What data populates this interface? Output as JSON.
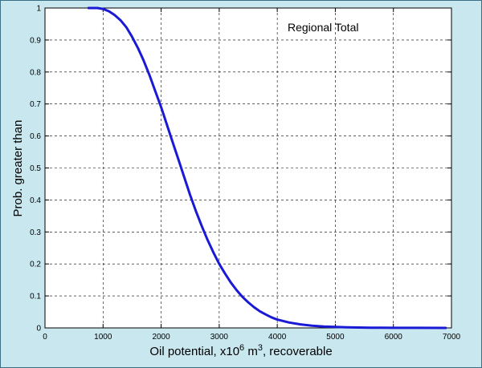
{
  "chart_data": {
    "type": "line",
    "title": "",
    "annotation": "Regional Total",
    "xlabel": "Oil potential, x10",
    "xlabel_sup1": "6",
    "xlabel_mid": " m",
    "xlabel_sup2": "3",
    "xlabel_end": ", recoverable",
    "ylabel": "Prob. greater than",
    "xlim": [
      0,
      7000
    ],
    "ylim": [
      0,
      1
    ],
    "x_ticks": [
      0,
      1000,
      2000,
      3000,
      4000,
      5000,
      6000,
      7000
    ],
    "y_ticks": [
      0,
      0.1,
      0.2,
      0.3,
      0.4,
      0.5,
      0.6,
      0.7,
      0.8,
      0.9,
      1
    ],
    "y_tick_labels": [
      "0",
      "0.1",
      "0.2",
      "0.3",
      "0.4",
      "0.5",
      "0.6",
      "0.7",
      "0.8",
      "0.9",
      "1"
    ],
    "grid": true,
    "line_color": "#1a1ad6",
    "series": [
      {
        "x": [
          750,
          900,
          1000,
          1100,
          1200,
          1300,
          1400,
          1500,
          1600,
          1700,
          1800,
          1900,
          2000,
          2100,
          2200,
          2300,
          2400,
          2500,
          2600,
          2700,
          2800,
          2900,
          3000,
          3100,
          3200,
          3300,
          3400,
          3500,
          3600,
          3700,
          3800,
          3900,
          4000,
          4200,
          4400,
          4600,
          4800,
          5000,
          5200,
          5400,
          5600,
          5800,
          6000,
          6400,
          6900
        ],
        "y": [
          1.0,
          1.0,
          0.997,
          0.99,
          0.978,
          0.962,
          0.94,
          0.91,
          0.875,
          0.835,
          0.79,
          0.74,
          0.69,
          0.635,
          0.58,
          0.525,
          0.47,
          0.415,
          0.365,
          0.318,
          0.275,
          0.236,
          0.2,
          0.17,
          0.142,
          0.118,
          0.097,
          0.08,
          0.065,
          0.052,
          0.042,
          0.033,
          0.026,
          0.017,
          0.011,
          0.007,
          0.0045,
          0.003,
          0.002,
          0.0012,
          0.0008,
          0.0005,
          0.0003,
          0.0002,
          0.0001
        ]
      }
    ]
  }
}
